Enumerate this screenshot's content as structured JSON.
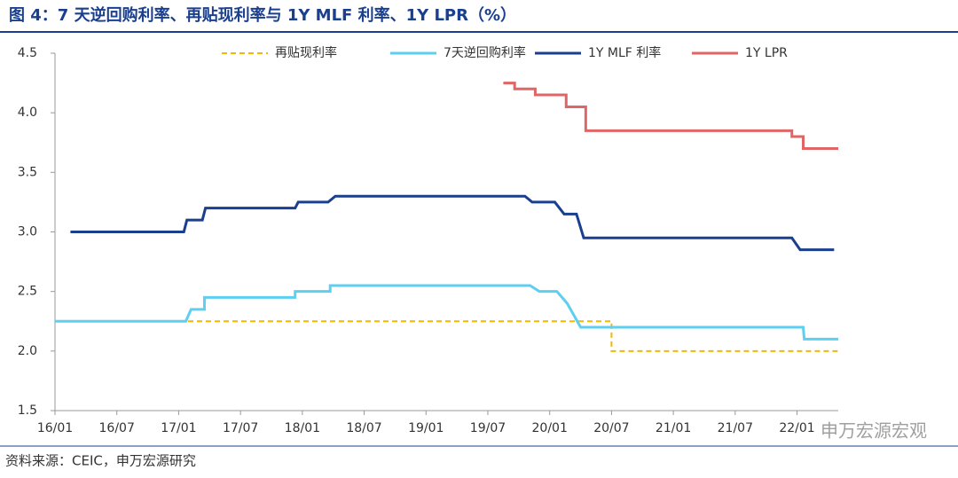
{
  "chart_data": {
    "type": "line",
    "title": "图 4：7 天逆回购利率、再贴现利率与 1Y MLF 利率、1Y LPR（%）",
    "source": "资料来源：CEIC，申万宏源研究",
    "watermark": "申万宏源宏观",
    "xlim": [
      0,
      76
    ],
    "xticks": [
      {
        "value": 0,
        "label": "16/01"
      },
      {
        "value": 6,
        "label": "16/07"
      },
      {
        "value": 12,
        "label": "17/01"
      },
      {
        "value": 18,
        "label": "17/07"
      },
      {
        "value": 24,
        "label": "18/01"
      },
      {
        "value": 30,
        "label": "18/07"
      },
      {
        "value": 36,
        "label": "19/01"
      },
      {
        "value": 42,
        "label": "19/07"
      },
      {
        "value": 48,
        "label": "20/01"
      },
      {
        "value": 54,
        "label": "20/07"
      },
      {
        "value": 60,
        "label": "21/01"
      },
      {
        "value": 66,
        "label": "21/07"
      },
      {
        "value": 72,
        "label": "22/01"
      }
    ],
    "ylim": [
      1.5,
      4.5
    ],
    "yticks": [
      1.5,
      {
        "value": 2,
        "label": "2.0"
      },
      2.5,
      {
        "value": 3,
        "label": "3.0"
      },
      3.5,
      {
        "value": 4,
        "label": "4.0"
      },
      4.5
    ],
    "series": [
      {
        "name": "再贴现利率",
        "color": "#f5b800",
        "dashed": true,
        "x": [
          0,
          54,
          54,
          76
        ],
        "values": [
          2.25,
          2.25,
          2.0,
          2.0
        ]
      },
      {
        "name": "7天逆回购利率",
        "color": "#5dcff0",
        "x": [
          0,
          12.7,
          13.2,
          14.5,
          14.5,
          23.3,
          23.3,
          26.7,
          26.7,
          46.1,
          47,
          48.7,
          49.7,
          51,
          72.6,
          72.7,
          76
        ],
        "values": [
          2.25,
          2.25,
          2.35,
          2.35,
          2.45,
          2.45,
          2.5,
          2.5,
          2.55,
          2.55,
          2.5,
          2.5,
          2.4,
          2.2,
          2.2,
          2.1,
          2.1
        ]
      },
      {
        "name": "1Y MLF 利率",
        "color": "#1a3f8f",
        "x": [
          1.5,
          12.5,
          12.8,
          14.3,
          14.6,
          23.3,
          23.6,
          26.5,
          27.2,
          45.6,
          46.3,
          48.5,
          49.4,
          50.6,
          51.3,
          71.5,
          72.3,
          75.6
        ],
        "values": [
          3.0,
          3.0,
          3.1,
          3.1,
          3.2,
          3.2,
          3.25,
          3.25,
          3.3,
          3.3,
          3.25,
          3.25,
          3.15,
          3.15,
          2.95,
          2.95,
          2.85,
          2.85
        ]
      },
      {
        "name": "1Y LPR",
        "color": "#e06666",
        "x": [
          43.5,
          44.6,
          44.6,
          46.6,
          46.6,
          49.6,
          49.6,
          51.5,
          51.5,
          71.5,
          71.5,
          72.6,
          72.6,
          76
        ],
        "values": [
          4.25,
          4.25,
          4.2,
          4.2,
          4.15,
          4.15,
          4.05,
          4.05,
          3.85,
          3.85,
          3.8,
          3.8,
          3.7,
          3.7
        ]
      }
    ]
  }
}
